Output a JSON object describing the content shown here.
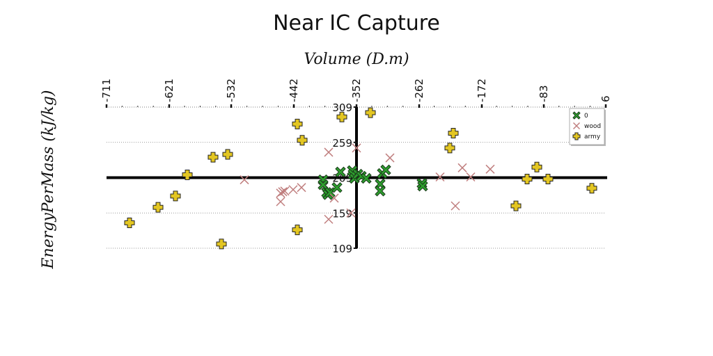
{
  "chart_data": {
    "type": "scatter",
    "title": "Near IC Capture",
    "xlabel": "Volume (D.m)",
    "ylabel": "EnergyPerMass (kJ/kg)",
    "xlim": [
      -711,
      6
    ],
    "ylim": [
      109,
      309
    ],
    "xticks": [
      "-711",
      "-621",
      "-532",
      "-442",
      "-352",
      "-262",
      "-172",
      "-83",
      "6"
    ],
    "yticks": [
      "109",
      "159",
      "209",
      "259",
      "309"
    ],
    "legend_position": "top-right",
    "series": [
      {
        "name": "0",
        "marker": "x-filled",
        "color": "#2e9e2e",
        "points": [
          [
            -375,
            217
          ],
          [
            -400,
            206
          ],
          [
            -400,
            199
          ],
          [
            -395,
            188
          ],
          [
            -393,
            185
          ],
          [
            -390,
            188
          ],
          [
            -380,
            195
          ],
          [
            -358,
            219
          ],
          [
            -357,
            214
          ],
          [
            -355,
            208
          ],
          [
            -350,
            214
          ],
          [
            -345,
            211
          ],
          [
            -338,
            208
          ],
          [
            -318,
            200
          ],
          [
            -318,
            190
          ],
          [
            -315,
            215
          ],
          [
            -310,
            220
          ],
          [
            -258,
            201
          ],
          [
            -257,
            197
          ]
        ]
      },
      {
        "name": "wood",
        "marker": "x",
        "color": "#c07f7f",
        "points": [
          [
            -513,
            206
          ],
          [
            -461,
            187
          ],
          [
            -461,
            175
          ],
          [
            -458,
            189
          ],
          [
            -455,
            190
          ],
          [
            -443,
            192
          ],
          [
            -431,
            195
          ],
          [
            -392,
            245
          ],
          [
            -392,
            150
          ],
          [
            -384,
            180
          ],
          [
            -360,
            159
          ],
          [
            -352,
            251
          ],
          [
            -304,
            237
          ],
          [
            -232,
            210
          ],
          [
            -210,
            169
          ],
          [
            -200,
            223
          ],
          [
            -188,
            210
          ],
          [
            -160,
            221
          ]
        ]
      },
      {
        "name": "army",
        "marker": "plus",
        "color": "#e3c622",
        "points": [
          [
            -678,
            145
          ],
          [
            -637,
            167
          ],
          [
            -612,
            183
          ],
          [
            -595,
            213
          ],
          [
            -558,
            238
          ],
          [
            -537,
            242
          ],
          [
            -546,
            115
          ],
          [
            -437,
            285
          ],
          [
            -430,
            262
          ],
          [
            -437,
            135
          ],
          [
            -373,
            295
          ],
          [
            -332,
            301
          ],
          [
            -218,
            251
          ],
          [
            -213,
            272
          ],
          [
            -123,
            169
          ],
          [
            -107,
            207
          ],
          [
            -93,
            224
          ],
          [
            -77,
            207
          ],
          [
            -14,
            194
          ]
        ]
      }
    ]
  }
}
